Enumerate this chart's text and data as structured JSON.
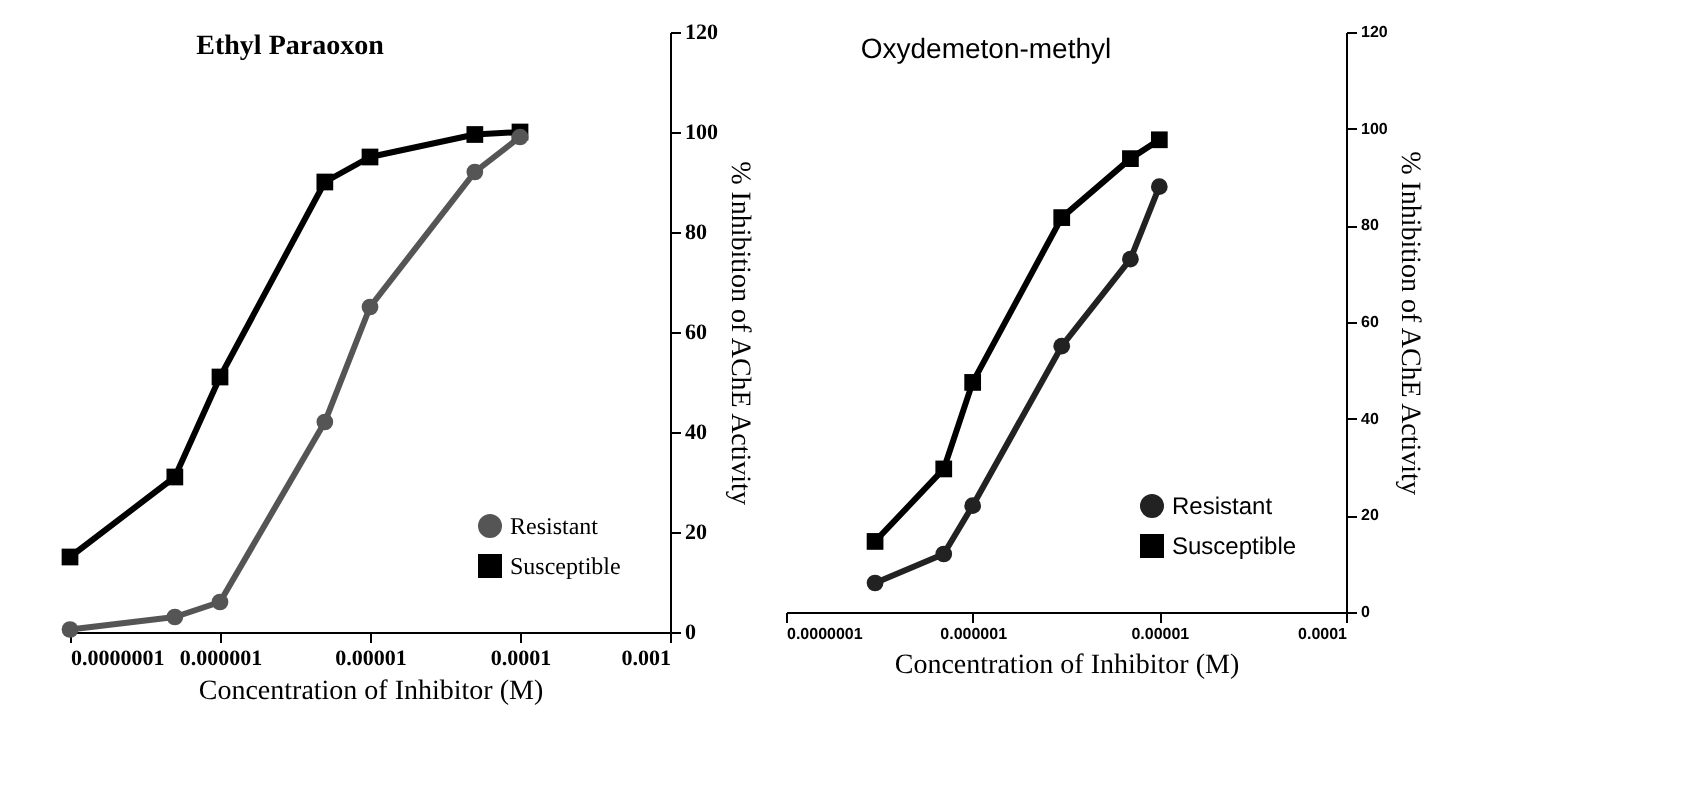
{
  "chart_data": [
    {
      "type": "line",
      "title": "Ethyl Paraoxon",
      "xlabel": "Concentration of Inhibitor (M)",
      "ylabel": "% Inhibition of AChE Activity",
      "log": "x",
      "legend": "bottom right",
      "grid": false,
      "xlim": [
        1e-07,
        0.001
      ],
      "xticks": [
        {
          "value": 1e-07,
          "label": "0.0000001"
        },
        {
          "value": 1e-06,
          "label": "0.000001"
        },
        {
          "value": 1e-05,
          "label": "0.00001"
        },
        {
          "value": 0.0001,
          "label": "0.0001"
        },
        {
          "value": 0.001,
          "label": "0.001"
        }
      ],
      "ylim": [
        0,
        120
      ],
      "yticks": [
        0,
        20,
        40,
        60,
        80,
        100,
        120
      ],
      "x": [
        1e-07,
        5e-07,
        1e-06,
        5e-06,
        1e-05,
        5e-05,
        0.0001
      ],
      "series": [
        {
          "name": "Resistant",
          "color": "#555555",
          "marker": "circle",
          "values": [
            0.5,
            3,
            6,
            42,
            65,
            92,
            99
          ]
        },
        {
          "name": "Susceptible",
          "color": "#000000",
          "marker": "square",
          "values": [
            15,
            31,
            51,
            90,
            95,
            99.5,
            100
          ]
        }
      ]
    },
    {
      "type": "line",
      "title": "Oxydemeton-methyl",
      "xlabel": "Concentration of Inhibitor (M)",
      "ylabel": "% Inhibition of AChE Activity",
      "log": "x",
      "legend": "bottom right",
      "grid": false,
      "xlim": [
        1e-07,
        0.0001
      ],
      "xticks": [
        {
          "value": 1e-07,
          "label": "0.0000001"
        },
        {
          "value": 1e-06,
          "label": "0.000001"
        },
        {
          "value": 1e-05,
          "label": "0.00001"
        },
        {
          "value": 0.0001,
          "label": "0.0001"
        }
      ],
      "ylim": [
        0,
        120
      ],
      "yticks": [
        0,
        20,
        40,
        60,
        80,
        100,
        120
      ],
      "x": [
        3e-07,
        7e-07,
        1e-06,
        3e-06,
        7e-06,
        1e-05
      ],
      "series": [
        {
          "name": "Resistant",
          "color": "#222222",
          "marker": "circle",
          "values": [
            6,
            12,
            22,
            55,
            73,
            88
          ]
        },
        {
          "name": "Susceptible",
          "color": "#000000",
          "marker": "square",
          "values": [
            14.6,
            29.6,
            47.5,
            81.6,
            93.8,
            97.7
          ]
        }
      ]
    }
  ]
}
